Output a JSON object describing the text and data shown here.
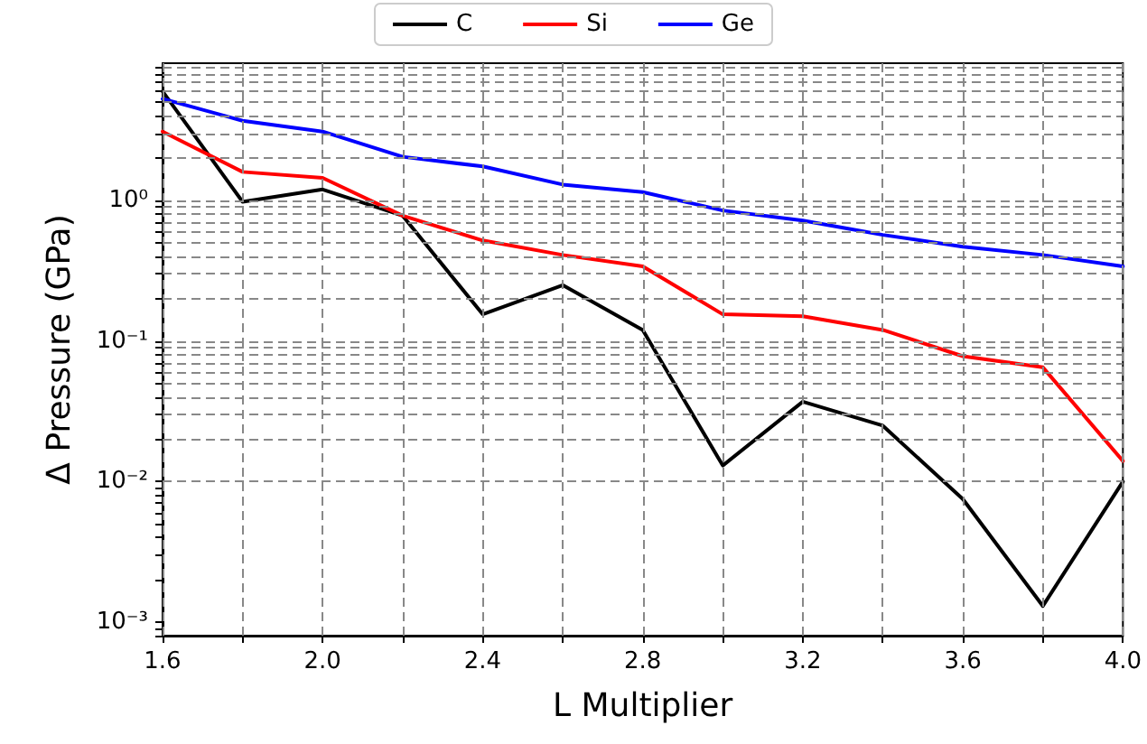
{
  "chart_data": {
    "type": "line",
    "xlabel": "L Multiplier",
    "ylabel": "Δ Pressure (GPa)",
    "x": [
      1.6,
      1.8,
      2.0,
      2.2,
      2.4,
      2.6,
      2.8,
      3.0,
      3.2,
      3.4,
      3.6,
      3.8,
      4.0
    ],
    "series": [
      {
        "name": "C",
        "color": "#000000",
        "values": [
          6.0,
          0.98,
          1.2,
          0.78,
          0.155,
          0.25,
          0.12,
          0.013,
          0.037,
          0.025,
          0.0075,
          0.0013,
          0.01
        ]
      },
      {
        "name": "Si",
        "color": "#ff0000",
        "values": [
          3.1,
          1.6,
          1.45,
          0.78,
          0.52,
          0.41,
          0.34,
          0.155,
          0.15,
          0.12,
          0.078,
          0.065,
          0.014
        ]
      },
      {
        "name": "Ge",
        "color": "#0000ff",
        "values": [
          5.3,
          3.7,
          3.1,
          2.05,
          1.75,
          1.3,
          1.15,
          0.85,
          0.72,
          0.57,
          0.47,
          0.41,
          0.34
        ]
      }
    ],
    "log": "y",
    "grid": true,
    "legend": "top",
    "marker": "none",
    "line_style": "solid",
    "xlim": [
      1.6,
      4.0
    ],
    "xticks": [
      1.6,
      {
        "value": 1.8,
        "label": null
      },
      {
        "value": 2.0,
        "label": "2.0"
      },
      {
        "value": 2.2,
        "label": null
      },
      2.4,
      {
        "value": 2.6,
        "label": null
      },
      2.8,
      {
        "value": 3.0,
        "label": null
      },
      3.2,
      {
        "value": 3.4,
        "label": null
      },
      3.6,
      {
        "value": 3.8,
        "label": null
      },
      {
        "value": 4.0,
        "label": "4.0"
      }
    ],
    "ylim": [
      0.0008,
      9.5
    ],
    "yticks": [
      {
        "value": 0.0008,
        "label": null
      },
      {
        "value": 0.0009,
        "label": null
      },
      {
        "value": 0.001,
        "label": "10⁻³"
      },
      {
        "value": 0.002,
        "label": null
      },
      {
        "value": 0.003,
        "label": null
      },
      {
        "value": 0.004,
        "label": null
      },
      {
        "value": 0.005,
        "label": null
      },
      {
        "value": 0.006,
        "label": null
      },
      {
        "value": 0.007,
        "label": null
      },
      {
        "value": 0.008,
        "label": null
      },
      {
        "value": 0.009,
        "label": null
      },
      {
        "value": 0.01,
        "label": "10⁻²"
      },
      {
        "value": 0.02,
        "label": null
      },
      {
        "value": 0.03,
        "label": null
      },
      {
        "value": 0.04,
        "label": null
      },
      {
        "value": 0.05,
        "label": null
      },
      {
        "value": 0.06,
        "label": null
      },
      {
        "value": 0.07,
        "label": null
      },
      {
        "value": 0.08,
        "label": null
      },
      {
        "value": 0.09,
        "label": null
      },
      {
        "value": 0.1,
        "label": "10⁻¹"
      },
      {
        "value": 0.2,
        "label": null
      },
      {
        "value": 0.3,
        "label": null
      },
      {
        "value": 0.4,
        "label": null
      },
      {
        "value": 0.5,
        "label": null
      },
      {
        "value": 0.6,
        "label": null
      },
      {
        "value": 0.7,
        "label": null
      },
      {
        "value": 0.8,
        "label": null
      },
      {
        "value": 0.9,
        "label": null
      },
      {
        "value": 1,
        "label": "10⁰"
      },
      {
        "value": 2,
        "label": null
      },
      {
        "value": 3,
        "label": null
      },
      {
        "value": 4,
        "label": null
      },
      {
        "value": 5,
        "label": null
      },
      {
        "value": 6,
        "label": null
      },
      {
        "value": 7,
        "label": null
      },
      {
        "value": 8,
        "label": null
      },
      {
        "value": 9,
        "label": null
      }
    ]
  }
}
